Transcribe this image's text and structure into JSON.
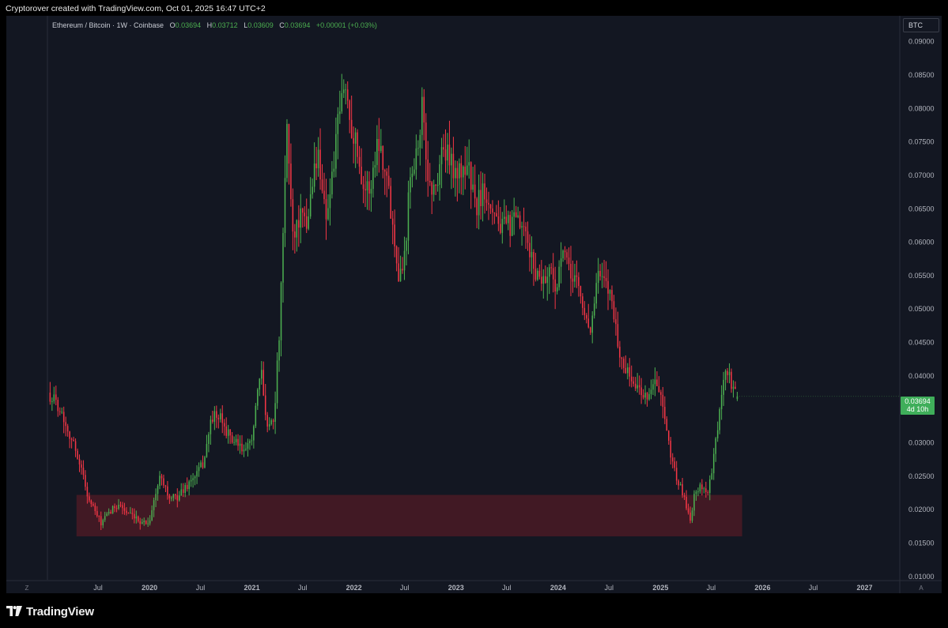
{
  "header": {
    "attribution": "Cryptorover created with TradingView.com, Oct 01, 2025 16:47 UTC+2"
  },
  "legend": {
    "symbol": "Ethereum / Bitcoin · 1W · Coinbase",
    "open_key": "O",
    "open": "0.03694",
    "high_key": "H",
    "high": "0.03712",
    "low_key": "L",
    "low": "0.03609",
    "close_key": "C",
    "close": "0.03694",
    "change": "+0.00001 (+0.03%)"
  },
  "currency_badge": "BTC",
  "price_tag": {
    "price": "0.03694",
    "countdown": "4d 10h"
  },
  "axis_corner": {
    "left": "Z",
    "right": "A"
  },
  "footer": {
    "brand": "TradingView"
  },
  "colors": {
    "background": "#131722",
    "up": "#4caf50",
    "down": "#f23645",
    "zone": "#4a1a24"
  },
  "chart_data": {
    "type": "candlestick",
    "title": "Ethereum / Bitcoin · 1W · Coinbase",
    "y_range": [
      0.0095,
      0.0915
    ],
    "y_ticks": [
      "0.09000",
      "0.08500",
      "0.08000",
      "0.07500",
      "0.07000",
      "0.06500",
      "0.06000",
      "0.05500",
      "0.05000",
      "0.04500",
      "0.04000",
      "0.03500",
      "0.03000",
      "0.02500",
      "0.02000",
      "0.01500",
      "0.01000"
    ],
    "x_range": [
      "2019-01-01",
      "2027-05-01"
    ],
    "x_ticks": [
      {
        "label": "Jul",
        "date": "2019-07-01"
      },
      {
        "label": "2020",
        "date": "2020-01-01",
        "bold": true
      },
      {
        "label": "Jul",
        "date": "2020-07-01"
      },
      {
        "label": "2021",
        "date": "2021-01-01",
        "bold": true
      },
      {
        "label": "Jul",
        "date": "2021-07-01"
      },
      {
        "label": "2022",
        "date": "2022-01-01",
        "bold": true
      },
      {
        "label": "Jul",
        "date": "2022-07-01"
      },
      {
        "label": "2023",
        "date": "2023-01-01",
        "bold": true
      },
      {
        "label": "Jul",
        "date": "2023-07-01"
      },
      {
        "label": "2024",
        "date": "2024-01-01",
        "bold": true
      },
      {
        "label": "Jul",
        "date": "2024-07-01"
      },
      {
        "label": "2025",
        "date": "2025-01-01",
        "bold": true
      },
      {
        "label": "Jul",
        "date": "2025-07-01"
      },
      {
        "label": "2026",
        "date": "2026-01-01",
        "bold": true
      },
      {
        "label": "Jul",
        "date": "2026-07-01"
      },
      {
        "label": "2027",
        "date": "2027-01-01",
        "bold": true
      }
    ],
    "candles_start": "2019-01-07",
    "interval": "1W",
    "price_path": [
      {
        "date": "2019-01-07",
        "price": 0.0375
      },
      {
        "date": "2019-02-15",
        "price": 0.0355
      },
      {
        "date": "2019-04-01",
        "price": 0.0305
      },
      {
        "date": "2019-05-01",
        "price": 0.027
      },
      {
        "date": "2019-06-01",
        "price": 0.0215
      },
      {
        "date": "2019-07-15",
        "price": 0.018
      },
      {
        "date": "2019-08-15",
        "price": 0.0195
      },
      {
        "date": "2019-09-15",
        "price": 0.021
      },
      {
        "date": "2019-10-15",
        "price": 0.0195
      },
      {
        "date": "2019-11-15",
        "price": 0.0185
      },
      {
        "date": "2020-01-01",
        "price": 0.018
      },
      {
        "date": "2020-02-15",
        "price": 0.0255
      },
      {
        "date": "2020-03-15",
        "price": 0.0215
      },
      {
        "date": "2020-04-15",
        "price": 0.022
      },
      {
        "date": "2020-05-15",
        "price": 0.0235
      },
      {
        "date": "2020-06-15",
        "price": 0.025
      },
      {
        "date": "2020-07-15",
        "price": 0.027
      },
      {
        "date": "2020-08-15",
        "price": 0.034
      },
      {
        "date": "2020-09-15",
        "price": 0.0335
      },
      {
        "date": "2020-10-15",
        "price": 0.031
      },
      {
        "date": "2020-11-15",
        "price": 0.0295
      },
      {
        "date": "2020-12-15",
        "price": 0.0285
      },
      {
        "date": "2021-01-10",
        "price": 0.032
      },
      {
        "date": "2021-02-05",
        "price": 0.041
      },
      {
        "date": "2021-03-01",
        "price": 0.0325
      },
      {
        "date": "2021-03-25",
        "price": 0.034
      },
      {
        "date": "2021-04-15",
        "price": 0.048
      },
      {
        "date": "2021-05-10",
        "price": 0.077
      },
      {
        "date": "2021-06-01",
        "price": 0.061
      },
      {
        "date": "2021-06-25",
        "price": 0.064
      },
      {
        "date": "2021-07-20",
        "price": 0.062
      },
      {
        "date": "2021-08-10",
        "price": 0.07
      },
      {
        "date": "2021-09-01",
        "price": 0.073
      },
      {
        "date": "2021-09-25",
        "price": 0.064
      },
      {
        "date": "2021-10-15",
        "price": 0.068
      },
      {
        "date": "2021-11-01",
        "price": 0.075
      },
      {
        "date": "2021-12-01",
        "price": 0.084
      },
      {
        "date": "2021-12-20",
        "price": 0.079
      },
      {
        "date": "2022-01-15",
        "price": 0.074
      },
      {
        "date": "2022-02-10",
        "price": 0.068
      },
      {
        "date": "2022-03-05",
        "price": 0.068
      },
      {
        "date": "2022-04-01",
        "price": 0.076
      },
      {
        "date": "2022-05-01",
        "price": 0.07
      },
      {
        "date": "2022-05-25",
        "price": 0.062
      },
      {
        "date": "2022-06-15",
        "price": 0.055
      },
      {
        "date": "2022-07-05",
        "price": 0.058
      },
      {
        "date": "2022-07-25",
        "price": 0.071
      },
      {
        "date": "2022-08-20",
        "price": 0.074
      },
      {
        "date": "2022-09-05",
        "price": 0.08
      },
      {
        "date": "2022-09-25",
        "price": 0.07
      },
      {
        "date": "2022-10-20",
        "price": 0.067
      },
      {
        "date": "2022-11-15",
        "price": 0.074
      },
      {
        "date": "2022-12-15",
        "price": 0.072
      },
      {
        "date": "2023-01-15",
        "price": 0.07
      },
      {
        "date": "2023-02-15",
        "price": 0.072
      },
      {
        "date": "2023-03-15",
        "price": 0.065
      },
      {
        "date": "2023-04-15",
        "price": 0.068
      },
      {
        "date": "2023-05-15",
        "price": 0.0655
      },
      {
        "date": "2023-06-15",
        "price": 0.062
      },
      {
        "date": "2023-07-15",
        "price": 0.0625
      },
      {
        "date": "2023-08-15",
        "price": 0.063
      },
      {
        "date": "2023-09-15",
        "price": 0.06
      },
      {
        "date": "2023-10-15",
        "price": 0.0555
      },
      {
        "date": "2023-11-15",
        "price": 0.0545
      },
      {
        "date": "2023-12-10",
        "price": 0.056
      },
      {
        "date": "2024-01-01",
        "price": 0.053
      },
      {
        "date": "2024-01-20",
        "price": 0.059
      },
      {
        "date": "2024-02-15",
        "price": 0.055
      },
      {
        "date": "2024-03-10",
        "price": 0.055
      },
      {
        "date": "2024-04-01",
        "price": 0.05
      },
      {
        "date": "2024-05-01",
        "price": 0.047
      },
      {
        "date": "2024-05-25",
        "price": 0.055
      },
      {
        "date": "2024-06-15",
        "price": 0.054
      },
      {
        "date": "2024-07-15",
        "price": 0.052
      },
      {
        "date": "2024-08-10",
        "price": 0.043
      },
      {
        "date": "2024-09-15",
        "price": 0.04
      },
      {
        "date": "2024-10-15",
        "price": 0.038
      },
      {
        "date": "2024-11-15",
        "price": 0.037
      },
      {
        "date": "2024-12-15",
        "price": 0.039
      },
      {
        "date": "2025-01-05",
        "price": 0.037
      },
      {
        "date": "2025-02-01",
        "price": 0.03
      },
      {
        "date": "2025-03-01",
        "price": 0.025
      },
      {
        "date": "2025-04-01",
        "price": 0.0215
      },
      {
        "date": "2025-04-20",
        "price": 0.0185
      },
      {
        "date": "2025-05-10",
        "price": 0.023
      },
      {
        "date": "2025-06-01",
        "price": 0.0235
      },
      {
        "date": "2025-06-25",
        "price": 0.0225
      },
      {
        "date": "2025-07-15",
        "price": 0.028
      },
      {
        "date": "2025-08-05",
        "price": 0.035
      },
      {
        "date": "2025-08-25",
        "price": 0.041
      },
      {
        "date": "2025-09-15",
        "price": 0.039
      },
      {
        "date": "2025-10-01",
        "price": 0.03694
      }
    ],
    "demand_zone": {
      "from_date": "2019-04-15",
      "to_date": "2025-10-20",
      "low": 0.016,
      "high": 0.0222
    },
    "last": {
      "price": 0.03694,
      "open": 0.03694,
      "high": 0.03712,
      "low": 0.03609
    }
  }
}
